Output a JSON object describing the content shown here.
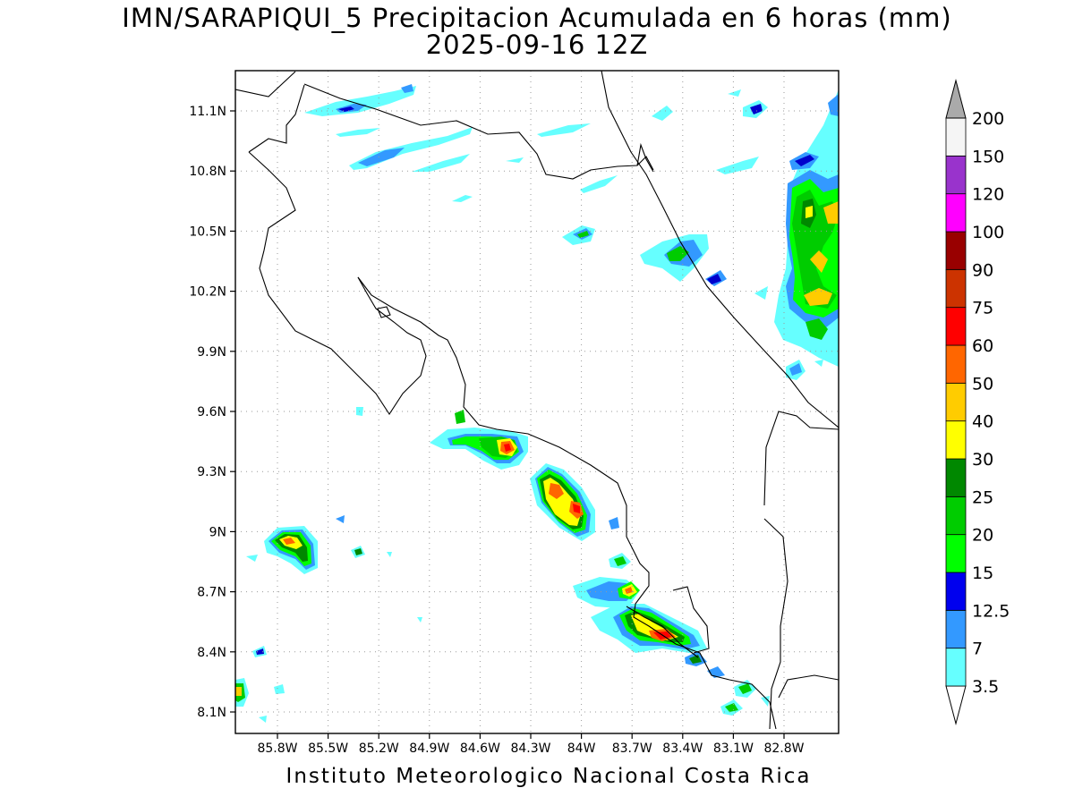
{
  "title": {
    "line1": "IMN/SARAPIQUI_5 Precipitacion Acumulada en 6 horas (mm)",
    "line2": "2025-09-16 12Z"
  },
  "credit": "Instituto Meteorologico Nacional Costa Rica",
  "map": {
    "lon_range": [
      -86.05,
      -82.5
    ],
    "lat_range": [
      8.0,
      11.3
    ],
    "lat_ticks": [
      "11.1N",
      "10.8N",
      "10.5N",
      "10.2N",
      "9.9N",
      "9.6N",
      "9.3N",
      "9N",
      "8.7N",
      "8.4N",
      "8.1N"
    ],
    "lon_ticks": [
      "85.8W",
      "85.5W",
      "85.2W",
      "84.9W",
      "84.6W",
      "84.3W",
      "84W",
      "83.7W",
      "83.4W",
      "83.1W",
      "82.8W"
    ],
    "grid": "dotted"
  },
  "colorbar": {
    "labels": [
      "3.5",
      "7",
      "12.5",
      "15",
      "20",
      "25",
      "30",
      "40",
      "50",
      "60",
      "75",
      "90",
      "100",
      "120",
      "150",
      "200"
    ],
    "colors": [
      "#66ffff",
      "#3399ff",
      "#0000ee",
      "#00ff00",
      "#00cc00",
      "#008800",
      "#ffff00",
      "#ffcc00",
      "#ff6600",
      "#ff0000",
      "#cc3300",
      "#990000",
      "#ff00ff",
      "#9933cc",
      "#f5f5f5",
      "#aaaaaa"
    ]
  }
}
